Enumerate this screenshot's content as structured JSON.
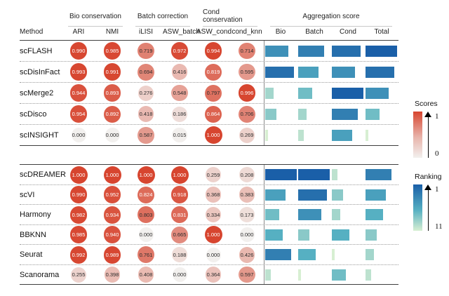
{
  "header": {
    "method_label": "Method"
  },
  "colors": {
    "score_high": "#d7452f",
    "score_low": "#f2f0ee",
    "rank_high": "#1a5fa8",
    "rank_mid": "#56b0c2",
    "rank_low": "#d7efd2",
    "solid_line": "#3f3f3f",
    "dotted_line": "#9b9b9b"
  },
  "legend": {
    "scores": {
      "title": "Scores",
      "top_label": "1",
      "bottom_label": "0"
    },
    "ranking": {
      "title": "Ranking",
      "top_label": "1",
      "bottom_label": "11"
    }
  },
  "chart_data": {
    "type": "heatmap",
    "title": "",
    "metric_groups": [
      {
        "label": "Bio conservation",
        "span": 2
      },
      {
        "label": "Batch correction",
        "span": 2
      },
      {
        "label": "Cond conservation",
        "span": 2
      },
      {
        "label": "Aggregation score",
        "span": 4
      }
    ],
    "metric_columns": [
      "ARI",
      "NMI",
      "iLISI",
      "ASW_batch",
      "ASW_cond",
      "cond_knn"
    ],
    "agg_columns": [
      "Bio",
      "Batch",
      "Cond",
      "Total"
    ],
    "score_range": [
      0,
      1
    ],
    "ranking_range": [
      1,
      11
    ],
    "blocks": [
      {
        "rows": [
          {
            "method": "scFLASH",
            "scores": [
              "0.990",
              "0.985",
              "0.719",
              "0.972",
              "0.994",
              "0.714"
            ],
            "agg_ranks": [
              4,
              3,
              2,
              1
            ]
          },
          {
            "method": "scDisInFact",
            "scores": [
              "0.993",
              "0.991",
              "0.694",
              "0.416",
              "0.819",
              "0.595"
            ],
            "agg_ranks": [
              2,
              5,
              4,
              2
            ]
          },
          {
            "method": "scMerge2",
            "scores": [
              "0.944",
              "0.893",
              "0.276",
              "0.548",
              "0.797",
              "0.996"
            ],
            "agg_ranks": [
              9,
              7,
              1,
              4
            ]
          },
          {
            "method": "scDisco",
            "scores": [
              "0.954",
              "0.892",
              "0.418",
              "0.186",
              "0.864",
              "0.706"
            ],
            "agg_ranks": [
              8,
              9,
              3,
              7
            ]
          },
          {
            "method": "scINSIGHT",
            "scores": [
              "0.000",
              "0.000",
              "0.587",
              "0.015",
              "1.000",
              "0.269"
            ],
            "agg_ranks": [
              11,
              10,
              5,
              11
            ]
          }
        ]
      },
      {
        "rows": [
          {
            "method": "scDREAMER",
            "scores": [
              "1.000",
              "1.000",
              "1.000",
              "1.000",
              "0.259",
              "0.208"
            ],
            "agg_ranks": [
              1,
              1,
              10,
              3
            ]
          },
          {
            "method": "scVI",
            "scores": [
              "0.990",
              "0.952",
              "0.824",
              "0.918",
              "0.368",
              "0.383"
            ],
            "agg_ranks": [
              5,
              2,
              8,
              5
            ]
          },
          {
            "method": "Harmony",
            "scores": [
              "0.982",
              "0.934",
              "0.803",
              "0.831",
              "0.334",
              "0.173"
            ],
            "agg_ranks": [
              7,
              4,
              9,
              6
            ]
          },
          {
            "method": "BBKNN",
            "scores": [
              "0.985",
              "0.940",
              "0.000",
              "0.665",
              "1.000",
              "0.000"
            ],
            "agg_ranks": [
              6,
              8,
              6,
              8
            ]
          },
          {
            "method": "Seurat",
            "scores": [
              "0.992",
              "0.989",
              "0.761",
              "0.188",
              "0.000",
              "0.426"
            ],
            "agg_ranks": [
              3,
              6,
              11,
              9
            ]
          },
          {
            "method": "Scanorama",
            "scores": [
              "0.255",
              "0.398",
              "0.408",
              "0.000",
              "0.364",
              "0.597"
            ],
            "agg_ranks": [
              10,
              11,
              7,
              10
            ]
          }
        ]
      }
    ]
  }
}
